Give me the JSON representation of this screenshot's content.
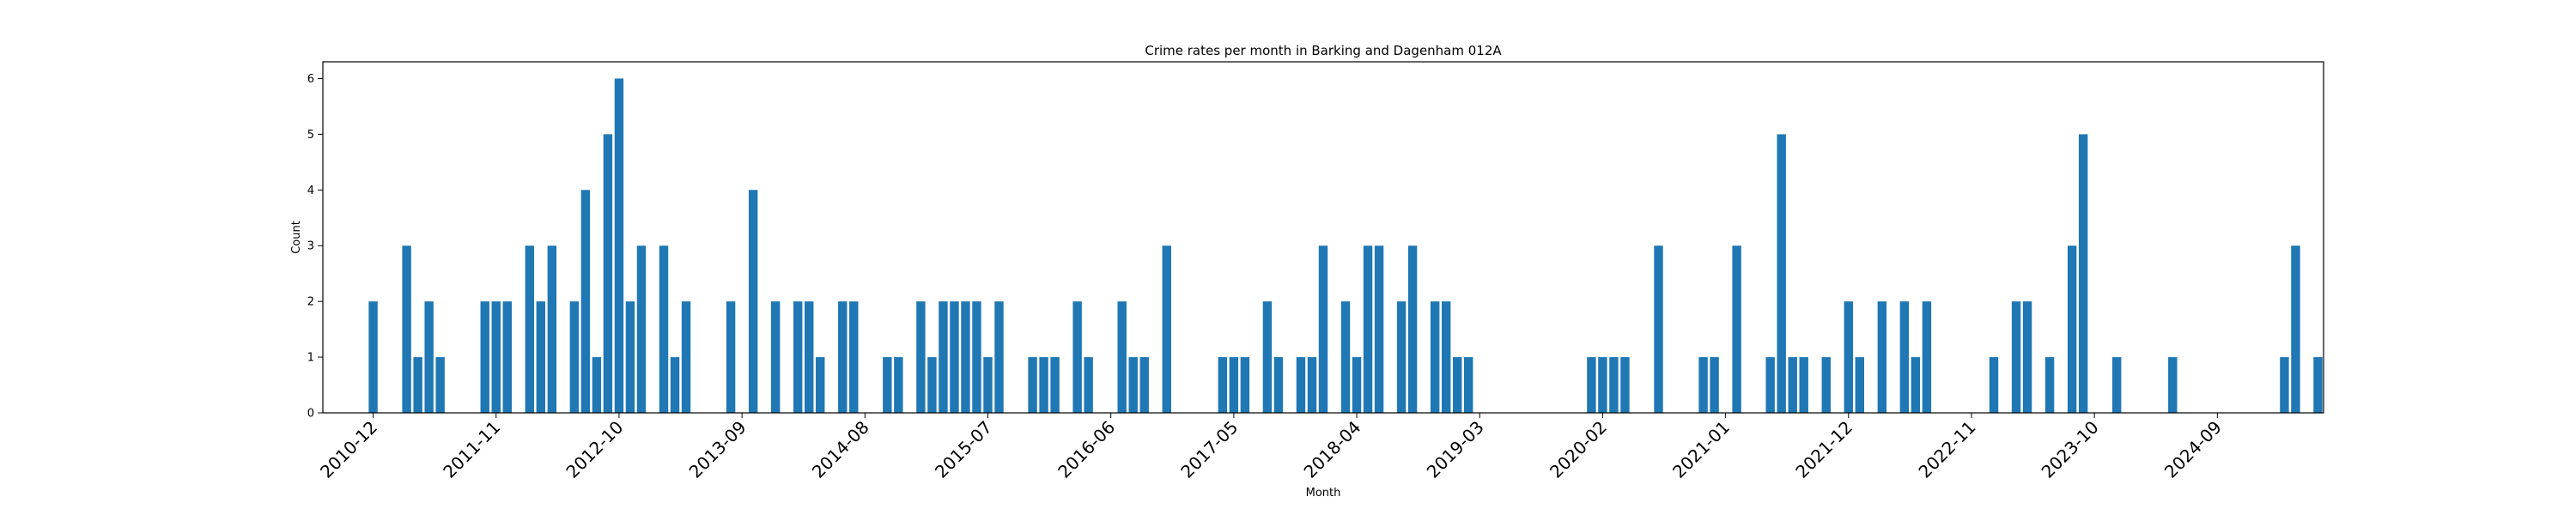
{
  "chart_data": {
    "type": "bar",
    "title": "Crime rates per month in Barking and Dagenham 012A",
    "xlabel": "Month",
    "ylabel": "Count",
    "ylim": [
      0,
      6.3
    ],
    "yticks": [
      0,
      1,
      2,
      3,
      4,
      5,
      6
    ],
    "xticks": [
      "2010-12",
      "2011-11",
      "2012-10",
      "2013-09",
      "2014-08",
      "2015-07",
      "2016-06",
      "2017-05",
      "2018-04",
      "2019-03",
      "2020-02",
      "2021-01",
      "2021-12",
      "2022-11",
      "2023-10",
      "2024-09"
    ],
    "bar_color": "#1f77b4",
    "grid": false,
    "x": [
      "2010-12",
      "2011-03",
      "2011-04",
      "2011-05",
      "2011-06",
      "2011-10",
      "2011-11",
      "2011-12",
      "2012-02",
      "2012-03",
      "2012-04",
      "2012-06",
      "2012-07",
      "2012-08",
      "2012-09",
      "2012-10",
      "2012-11",
      "2012-12",
      "2013-02",
      "2013-03",
      "2013-04",
      "2013-08",
      "2013-10",
      "2013-12",
      "2014-02",
      "2014-03",
      "2014-04",
      "2014-06",
      "2014-07",
      "2014-10",
      "2014-11",
      "2015-01",
      "2015-02",
      "2015-03",
      "2015-04",
      "2015-05",
      "2015-06",
      "2015-07",
      "2015-08",
      "2015-11",
      "2015-12",
      "2016-01",
      "2016-03",
      "2016-04",
      "2016-07",
      "2016-08",
      "2016-09",
      "2016-11",
      "2017-04",
      "2017-05",
      "2017-06",
      "2017-08",
      "2017-09",
      "2017-11",
      "2017-12",
      "2018-01",
      "2018-03",
      "2018-04",
      "2018-05",
      "2018-06",
      "2018-08",
      "2018-09",
      "2018-11",
      "2018-12",
      "2019-01",
      "2019-02",
      "2020-01",
      "2020-02",
      "2020-03",
      "2020-04",
      "2020-07",
      "2020-11",
      "2020-12",
      "2021-02",
      "2021-05",
      "2021-06",
      "2021-07",
      "2021-08",
      "2021-10",
      "2021-12",
      "2022-01",
      "2022-03",
      "2022-05",
      "2022-06",
      "2022-07",
      "2023-01",
      "2023-03",
      "2023-04",
      "2023-06",
      "2023-08",
      "2023-09",
      "2023-12",
      "2024-05",
      "2025-03",
      "2025-04",
      "2025-06"
    ],
    "values": [
      2,
      3,
      1,
      2,
      1,
      2,
      2,
      2,
      3,
      2,
      3,
      2,
      4,
      1,
      5,
      6,
      2,
      3,
      3,
      1,
      2,
      2,
      4,
      2,
      2,
      2,
      1,
      2,
      2,
      1,
      1,
      2,
      1,
      2,
      2,
      2,
      2,
      1,
      2,
      1,
      1,
      1,
      2,
      1,
      2,
      1,
      1,
      3,
      1,
      1,
      1,
      2,
      1,
      1,
      1,
      3,
      2,
      1,
      3,
      3,
      2,
      3,
      2,
      2,
      1,
      1,
      1,
      1,
      1,
      1,
      3,
      1,
      1,
      3,
      1,
      5,
      1,
      1,
      1,
      2,
      1,
      2,
      2,
      1,
      2,
      1,
      2,
      2,
      1,
      3,
      5,
      1,
      1,
      1,
      3,
      1
    ]
  }
}
